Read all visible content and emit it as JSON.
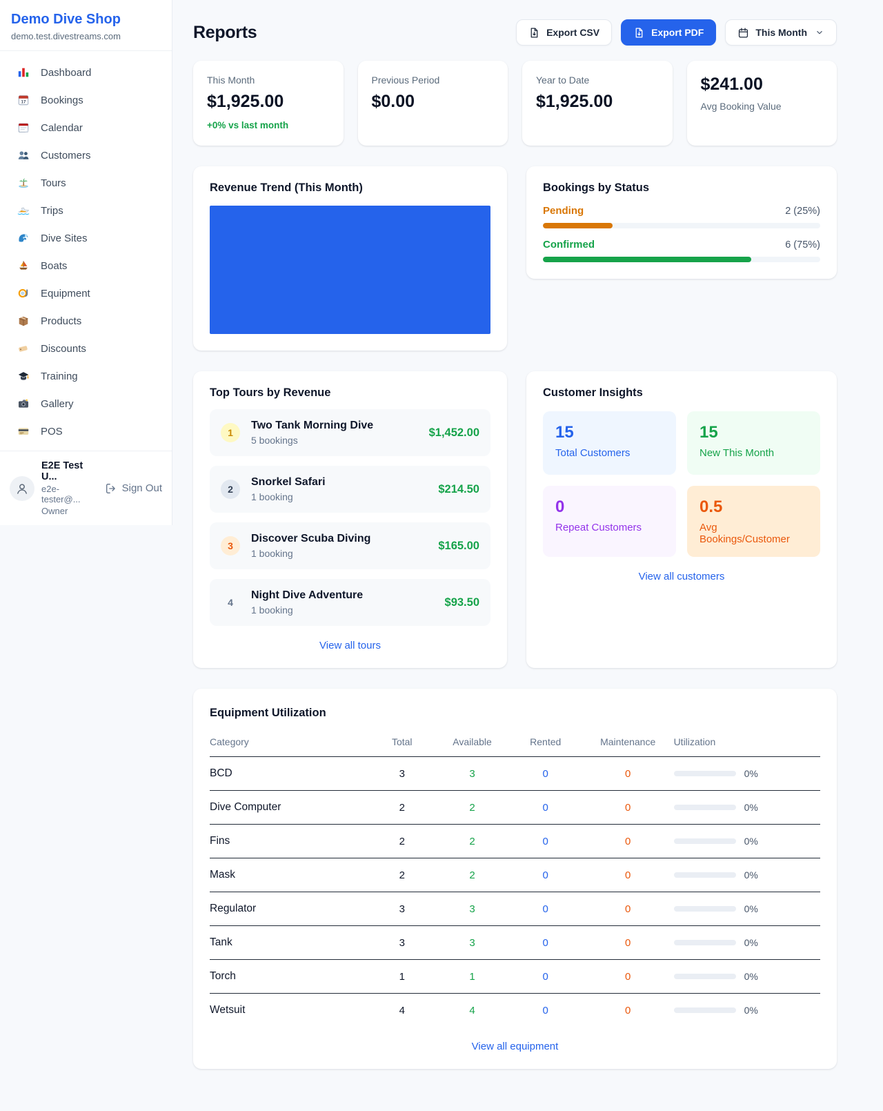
{
  "palette": {
    "brand_blue": "#2563eb",
    "green": "#16a34a",
    "amber": "#d97706",
    "orange": "#ea580c",
    "purple": "#9333ea",
    "page_bg": "#f7f9fc"
  },
  "sidebar": {
    "brand": "Demo Dive Shop",
    "domain": "demo.test.divestreams.com",
    "items": [
      {
        "label": "Dashboard",
        "icon": "bar-chart-icon"
      },
      {
        "label": "Bookings",
        "icon": "calendar-date-icon"
      },
      {
        "label": "Calendar",
        "icon": "calendar-icon"
      },
      {
        "label": "Customers",
        "icon": "people-icon"
      },
      {
        "label": "Tours",
        "icon": "island-icon"
      },
      {
        "label": "Trips",
        "icon": "speedboat-icon"
      },
      {
        "label": "Dive Sites",
        "icon": "wave-icon"
      },
      {
        "label": "Boats",
        "icon": "sailboat-icon"
      },
      {
        "label": "Equipment",
        "icon": "dive-mask-icon"
      },
      {
        "label": "Products",
        "icon": "package-icon"
      },
      {
        "label": "Discounts",
        "icon": "tag-icon"
      },
      {
        "label": "Training",
        "icon": "graduation-cap-icon"
      },
      {
        "label": "Gallery",
        "icon": "camera-icon"
      },
      {
        "label": "POS",
        "icon": "credit-card-icon"
      }
    ],
    "user": {
      "name": "E2E Test U...",
      "email": "e2e-tester@...",
      "role": "Owner",
      "signout": "Sign Out"
    }
  },
  "header": {
    "title": "Reports",
    "export_csv": "Export CSV",
    "export_pdf": "Export PDF",
    "period": "This Month"
  },
  "stats": [
    {
      "label": "This Month",
      "value": "$1,925.00",
      "delta": "+0% vs last month"
    },
    {
      "label": "Previous Period",
      "value": "$0.00"
    },
    {
      "label": "Year to Date",
      "value": "$1,925.00"
    },
    {
      "label": "Avg Booking Value",
      "value": "$241.00"
    }
  ],
  "revenue": {
    "title": "Revenue Trend (This Month)"
  },
  "status": {
    "title": "Bookings by Status",
    "rows": [
      {
        "label": "Pending",
        "value": "2 (25%)",
        "pct": 25
      },
      {
        "label": "Confirmed",
        "value": "6 (75%)",
        "pct": 75
      }
    ]
  },
  "tours": {
    "title": "Top Tours by Revenue",
    "rows": [
      {
        "rank": "1",
        "name": "Two Tank Morning Dive",
        "bookings": "5 bookings",
        "amount": "$1,452.00"
      },
      {
        "rank": "2",
        "name": "Snorkel Safari",
        "bookings": "1 booking",
        "amount": "$214.50"
      },
      {
        "rank": "3",
        "name": "Discover Scuba Diving",
        "bookings": "1 booking",
        "amount": "$165.00"
      },
      {
        "rank": "4",
        "name": "Night Dive Adventure",
        "bookings": "1 booking",
        "amount": "$93.50"
      }
    ],
    "link": "View all tours"
  },
  "insights": {
    "title": "Customer Insights",
    "tiles": [
      {
        "value": "15",
        "label": "Total Customers"
      },
      {
        "value": "15",
        "label": "New This Month"
      },
      {
        "value": "0",
        "label": "Repeat Customers"
      },
      {
        "value": "0.5",
        "label": "Avg Bookings/Customer"
      }
    ],
    "link": "View all customers"
  },
  "equipment": {
    "title": "Equipment Utilization",
    "columns": [
      "Category",
      "Total",
      "Available",
      "Rented",
      "Maintenance",
      "Utilization"
    ],
    "rows": [
      {
        "category": "BCD",
        "total": "3",
        "available": "3",
        "rented": "0",
        "maintenance": "0",
        "utilization": "0%",
        "pct": 0
      },
      {
        "category": "Dive Computer",
        "total": "2",
        "available": "2",
        "rented": "0",
        "maintenance": "0",
        "utilization": "0%",
        "pct": 0
      },
      {
        "category": "Fins",
        "total": "2",
        "available": "2",
        "rented": "0",
        "maintenance": "0",
        "utilization": "0%",
        "pct": 0
      },
      {
        "category": "Mask",
        "total": "2",
        "available": "2",
        "rented": "0",
        "maintenance": "0",
        "utilization": "0%",
        "pct": 0
      },
      {
        "category": "Regulator",
        "total": "3",
        "available": "3",
        "rented": "0",
        "maintenance": "0",
        "utilization": "0%",
        "pct": 0
      },
      {
        "category": "Tank",
        "total": "3",
        "available": "3",
        "rented": "0",
        "maintenance": "0",
        "utilization": "0%",
        "pct": 0
      },
      {
        "category": "Torch",
        "total": "1",
        "available": "1",
        "rented": "0",
        "maintenance": "0",
        "utilization": "0%",
        "pct": 0
      },
      {
        "category": "Wetsuit",
        "total": "4",
        "available": "4",
        "rented": "0",
        "maintenance": "0",
        "utilization": "0%",
        "pct": 0
      }
    ],
    "link": "View all equipment"
  },
  "chart_data": [
    {
      "type": "area",
      "title": "Revenue Trend (This Month)",
      "color": "#2563eb",
      "note": "plot area rendered as a fully-filled solid blue region; no axis ticks or labels visible"
    },
    {
      "type": "bar",
      "title": "Bookings by Status",
      "categories": [
        "Pending",
        "Confirmed"
      ],
      "values": [
        2,
        6
      ],
      "percent": [
        25,
        75
      ],
      "colors": [
        "#d97706",
        "#16a34a"
      ]
    }
  ]
}
